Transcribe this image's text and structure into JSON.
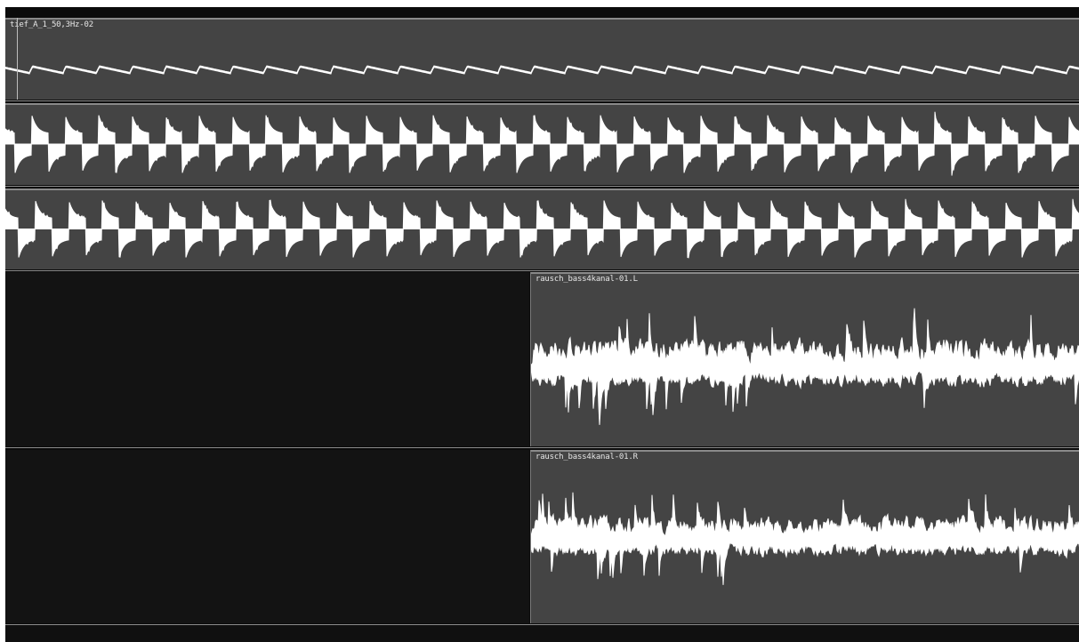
{
  "tracks": [
    {
      "id": "track-1",
      "region_label": "tief_A_1_50,3Hz-02"
    },
    {
      "id": "track-2",
      "region_label": ""
    },
    {
      "id": "track-3",
      "region_label": ""
    },
    {
      "id": "track-4",
      "region_label": "rausch_bass4kanal-01.L"
    },
    {
      "id": "track-5",
      "region_label": "rausch_bass4kanal-01.R"
    }
  ],
  "colors": {
    "region_bg": "#444444",
    "empty_lane_bg": "#131313",
    "waveform": "#ffffff",
    "separator": "#8c8c8c",
    "label_text": "#e6e6e6"
  },
  "icons": {
    "playhead": "playhead-line"
  }
}
